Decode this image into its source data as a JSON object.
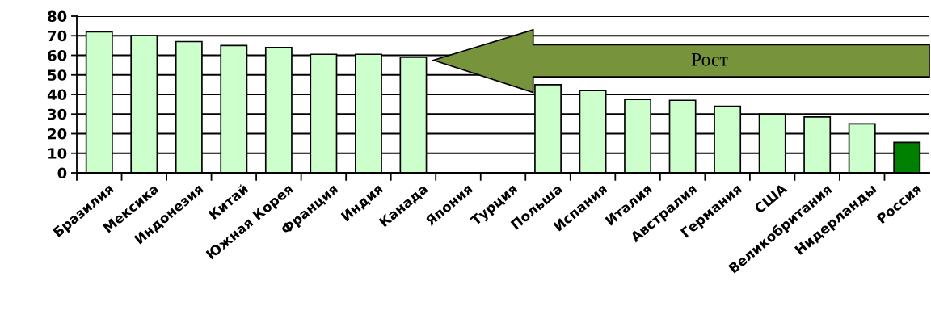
{
  "chart_data": {
    "type": "bar",
    "categories": [
      "Бразилия",
      "Мексика",
      "Индонезия",
      "Китай",
      "Южная Корея",
      "Франция",
      "Индия",
      "Канада",
      "Япония",
      "Турция",
      "Польша",
      "Испания",
      "Италия",
      "Австралия",
      "Германия",
      "США",
      "Великобритания",
      "Нидерланды",
      "Россия"
    ],
    "values": [
      72,
      70,
      67,
      65,
      64,
      60.5,
      60.5,
      59,
      null,
      null,
      45,
      42,
      37.5,
      37,
      34,
      30,
      28.5,
      25,
      15.5
    ],
    "colors": [
      "#ccffcc",
      "#ccffcc",
      "#ccffcc",
      "#ccffcc",
      "#ccffcc",
      "#ccffcc",
      "#ccffcc",
      "#ccffcc",
      "#ccffcc",
      "#ccffcc",
      "#ccffcc",
      "#ccffcc",
      "#ccffcc",
      "#ccffcc",
      "#ccffcc",
      "#ccffcc",
      "#ccffcc",
      "#ccffcc",
      "#008000"
    ],
    "ylim": [
      0,
      80
    ],
    "yticks": [
      0,
      10,
      20,
      30,
      40,
      50,
      60,
      70,
      80
    ],
    "grid": "y",
    "annotations": [
      "Рост"
    ]
  }
}
